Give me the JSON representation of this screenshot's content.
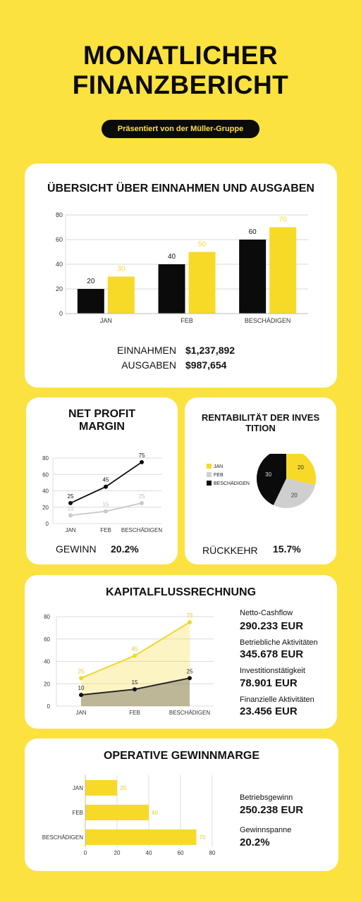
{
  "header": {
    "title_line1": "MONATLICHER",
    "title_line2": "FINANZBERICHT",
    "subtitle": "Präsentiert von der Müller-Gruppe"
  },
  "overview": {
    "title": "ÜBERSICHT ÜBER EINNAHMEN UND AUSGABEN",
    "income_label": "EINNAHMEN",
    "income_value": "$1,237,892",
    "expense_label": "AUSGABEN",
    "expense_value": "$987,654"
  },
  "net_profit": {
    "title_line1": "NET PROFIT",
    "title_line2": "MARGIN",
    "label": "GEWINN",
    "value": "20.2%"
  },
  "roi": {
    "title_line1": "RENTABILITÄT DER INVES",
    "title_line2": "TITION",
    "label": "RÜCKKEHR",
    "value": "15.7%"
  },
  "cashflow": {
    "title": "KAPITALFLUSSRECHNUNG",
    "items": [
      {
        "label": "Netto-Cashflow",
        "value": "290.233 EUR"
      },
      {
        "label": "Betriebliche Aktivitäten",
        "value": "345.678 EUR"
      },
      {
        "label": "Investitionstätigkeit",
        "value": "78.901 EUR"
      },
      {
        "label": "Finanzielle Aktivitäten",
        "value": "23.456 EUR"
      }
    ]
  },
  "operating": {
    "title": "OPERATIVE GEWINNMARGE",
    "items": [
      {
        "label": "Betriebsgewinn",
        "value": "250.238 EUR"
      },
      {
        "label": "Gewinnspanne",
        "value": "20.2%"
      }
    ]
  },
  "colors": {
    "yellow": "#fbe23e",
    "bar_yellow": "#f7d928",
    "black": "#0b0b0b",
    "gray": "#cfcfcf"
  },
  "chart_data": [
    {
      "type": "bar",
      "categories": [
        "JAN",
        "FEB",
        "BESCHÄDIGEN"
      ],
      "series": [
        {
          "values": [
            20,
            40,
            60
          ],
          "color": "#0b0b0b"
        },
        {
          "values": [
            30,
            50,
            70
          ],
          "color": "#f7d928"
        }
      ],
      "ylim": [
        0,
        80
      ],
      "yticks": [
        0,
        20,
        40,
        60,
        80
      ],
      "grid": true
    },
    {
      "type": "line",
      "categories": [
        "JAN",
        "FEB",
        "BESCHÄDIGEN"
      ],
      "series": [
        {
          "values": [
            25,
            45,
            75
          ],
          "color": "#0b0b0b"
        },
        {
          "values": [
            10,
            15,
            25
          ],
          "color": "#c9c9c9"
        }
      ],
      "ylim": [
        0,
        80
      ],
      "yticks": [
        0,
        20,
        40,
        60,
        80
      ],
      "grid": true
    },
    {
      "type": "pie",
      "labels": [
        "JAN",
        "FEB",
        "BESCHÄDIGEN"
      ],
      "values": [
        20,
        20,
        30
      ],
      "colors": [
        "#f7d928",
        "#cfcfcf",
        "#0b0b0b"
      ],
      "legend": "left"
    },
    {
      "type": "area",
      "categories": [
        "JAN",
        "FEB",
        "BESCHÄDIGEN"
      ],
      "series": [
        {
          "values": [
            25,
            45,
            75
          ],
          "color": "#f2d62e"
        },
        {
          "values": [
            10,
            15,
            25
          ],
          "color": "#222222"
        }
      ],
      "ylim": [
        0,
        80
      ],
      "yticks": [
        0,
        20,
        40,
        60,
        80
      ],
      "grid": true
    },
    {
      "type": "bar",
      "orientation": "horizontal",
      "categories": [
        "JAN",
        "FEB",
        "BESCHÄDIGEN"
      ],
      "values": [
        20,
        40,
        70
      ],
      "color": "#f7d928",
      "xlim": [
        0,
        80
      ],
      "xticks": [
        0,
        20,
        40,
        60,
        80
      ],
      "grid": true
    }
  ]
}
